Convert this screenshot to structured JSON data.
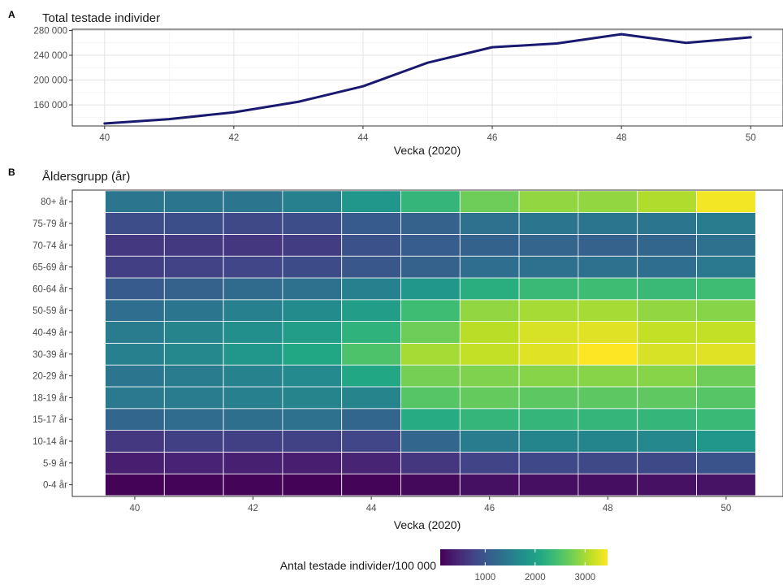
{
  "chart_data": [
    {
      "type": "line",
      "panel_tag": "A",
      "title": "Total testade individer",
      "xlabel": "Vecka (2020)",
      "ylabel": "",
      "x": [
        40,
        41,
        42,
        43,
        44,
        45,
        46,
        47,
        48,
        49,
        50
      ],
      "y": [
        130000,
        137000,
        148000,
        165000,
        190000,
        228000,
        253000,
        259000,
        274000,
        260000,
        269000
      ],
      "xlim": [
        39.5,
        50.5
      ],
      "ylim": [
        126000,
        282000
      ],
      "x_ticks": [
        "40",
        "42",
        "44",
        "46",
        "48",
        "50"
      ],
      "y_ticks": [
        "160 000",
        "200 000",
        "240 000",
        "280 000"
      ],
      "line_color": "#191970",
      "grid": true
    },
    {
      "type": "heatmap",
      "panel_tag": "B",
      "title": "Åldersgrupp (år)",
      "xlabel": "Vecka (2020)",
      "ylabel": "Åldersgrupp (år)",
      "x": [
        40,
        41,
        42,
        43,
        44,
        45,
        46,
        47,
        48,
        49,
        50
      ],
      "x_ticks": [
        "40",
        "42",
        "44",
        "46",
        "48",
        "50"
      ],
      "y_categories": [
        "0-4 år",
        "5-9 år",
        "10-14 år",
        "15-17 år",
        "18-19 år",
        "20-29 år",
        "30-39 år",
        "40-49 år",
        "50-59 år",
        "60-64 år",
        "65-69 år",
        "70-74 år",
        "75-79 år",
        "80+ år"
      ],
      "values": [
        [
          120,
          140,
          130,
          120,
          130,
          180,
          240,
          230,
          220,
          250,
          270
        ],
        [
          380,
          420,
          400,
          380,
          440,
          620,
          780,
          820,
          830,
          850,
          960
        ],
        [
          650,
          730,
          730,
          750,
          800,
          1200,
          1500,
          1620,
          1620,
          1660,
          1850
        ],
        [
          1200,
          1280,
          1320,
          1350,
          1200,
          2150,
          2300,
          2300,
          2300,
          2300,
          2350
        ],
        [
          1450,
          1500,
          1550,
          1600,
          1600,
          2550,
          2650,
          2600,
          2600,
          2620,
          2550
        ],
        [
          1400,
          1480,
          1580,
          1680,
          2100,
          2750,
          2800,
          2850,
          2850,
          2850,
          2700
        ],
        [
          1550,
          1650,
          1850,
          2100,
          2500,
          3000,
          3150,
          3300,
          3450,
          3250,
          3300
        ],
        [
          1500,
          1600,
          1750,
          1950,
          2250,
          2700,
          3100,
          3250,
          3300,
          3150,
          3150
        ],
        [
          1300,
          1400,
          1550,
          1700,
          1950,
          2400,
          2900,
          3000,
          3000,
          2900,
          2850
        ],
        [
          1050,
          1150,
          1250,
          1350,
          1550,
          1850,
          2200,
          2350,
          2400,
          2350,
          2400
        ],
        [
          720,
          760,
          800,
          870,
          1000,
          1150,
          1300,
          1350,
          1350,
          1300,
          1450
        ],
        [
          640,
          660,
          620,
          700,
          930,
          1080,
          1160,
          1180,
          1150,
          1200,
          1350
        ],
        [
          880,
          900,
          830,
          880,
          1050,
          1150,
          1350,
          1400,
          1400,
          1400,
          1500
        ],
        [
          1400,
          1400,
          1400,
          1550,
          1850,
          2300,
          2700,
          2900,
          2900,
          3050,
          3400
        ]
      ],
      "colorbar": {
        "title": "Antal testade individer/100 000",
        "ticks": [
          "1000",
          "2000",
          "3000"
        ],
        "range": [
          100,
          3450
        ],
        "palette": [
          "#440154",
          "#482475",
          "#414487",
          "#355f8d",
          "#2a788e",
          "#21918c",
          "#22a884",
          "#44bf70",
          "#7ad151",
          "#bddf26",
          "#fde725"
        ]
      },
      "legend_position": "bottom"
    }
  ]
}
